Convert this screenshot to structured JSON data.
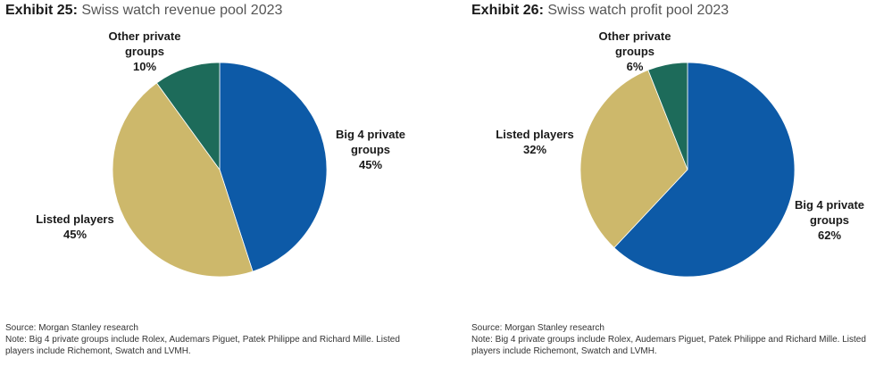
{
  "chart_data": [
    {
      "type": "pie",
      "exhibit": "Exhibit 25:",
      "title": "Swiss watch revenue pool 2023",
      "slices": [
        {
          "label_lines": [
            "Big 4 private",
            "groups"
          ],
          "pct_label": "45%",
          "value": 45,
          "color": "#0d5aa7"
        },
        {
          "label_lines": [
            "Listed players"
          ],
          "pct_label": "45%",
          "value": 45,
          "color": "#cdb86b"
        },
        {
          "label_lines": [
            "Other private",
            "groups"
          ],
          "pct_label": "10%",
          "value": 10,
          "color": "#1d6b5a"
        }
      ],
      "source": "Source: Morgan Stanley research",
      "note": "Note: Big 4 private groups include Rolex, Audemars Piguet, Patek Philippe and Richard Mille. Listed players include Richemont, Swatch and LVMH."
    },
    {
      "type": "pie",
      "exhibit": "Exhibit 26:",
      "title": "Swiss watch profit pool 2023",
      "slices": [
        {
          "label_lines": [
            "Big 4 private",
            "groups"
          ],
          "pct_label": "62%",
          "value": 62,
          "color": "#0d5aa7"
        },
        {
          "label_lines": [
            "Listed players"
          ],
          "pct_label": "32%",
          "value": 32,
          "color": "#cdb86b"
        },
        {
          "label_lines": [
            "Other private",
            "groups"
          ],
          "pct_label": "6%",
          "value": 6,
          "color": "#1d6b5a"
        }
      ],
      "source": "Source: Morgan Stanley research",
      "note": "Note: Big 4 private groups include Rolex, Audemars Piguet, Patek Philippe and Richard Mille. Listed players include Richemont, Swatch and LVMH."
    }
  ]
}
